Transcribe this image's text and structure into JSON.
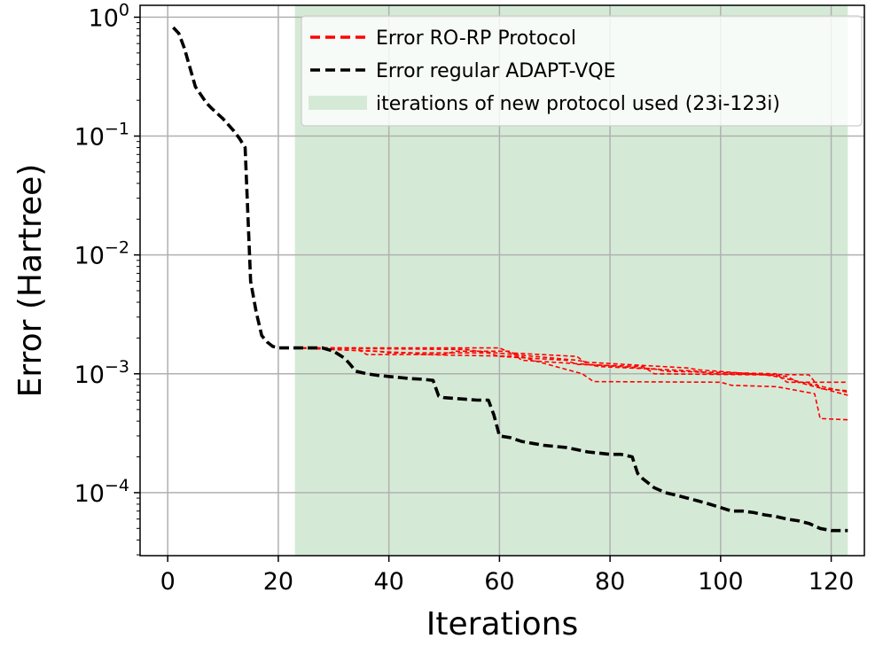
{
  "chart_data": {
    "type": "line",
    "xlabel": "Iterations",
    "ylabel": "Error (Hartree)",
    "xlim": [
      -5,
      126
    ],
    "ylim_log10": [
      -4.53,
      0.1
    ],
    "y_scale": "log",
    "grid": true,
    "x_ticks": [
      0,
      20,
      40,
      60,
      80,
      100,
      120
    ],
    "y_ticks": [
      {
        "exp": 0,
        "base": "10",
        "sup": "0"
      },
      {
        "exp": -1,
        "base": "10",
        "sup": "−1"
      },
      {
        "exp": -2,
        "base": "10",
        "sup": "−2"
      },
      {
        "exp": -3,
        "base": "10",
        "sup": "−3"
      },
      {
        "exp": -4,
        "base": "10",
        "sup": "−4"
      }
    ],
    "shaded_region": {
      "x": [
        23,
        123
      ],
      "color": "#d5ead6",
      "label": "iterations of new protocol used (23i-123i)"
    },
    "legend_position": "upper-right",
    "colors": {
      "ro_rp": "#ff0000",
      "regular": "#000000",
      "shade": "#d5ead6",
      "grid": "#b0b0b0"
    },
    "series": [
      {
        "name": "Error regular ADAPT-VQE",
        "style": "black-dashed",
        "x": [
          1,
          2,
          3,
          4,
          5,
          7,
          8,
          10,
          12,
          13,
          14,
          15,
          16,
          17,
          18,
          19,
          20,
          22,
          24,
          26,
          28,
          30,
          32,
          33,
          34,
          36,
          38,
          40,
          42,
          44,
          46,
          48,
          49,
          50,
          52,
          54,
          56,
          58,
          59,
          60,
          62,
          64,
          66,
          68,
          70,
          72,
          74,
          76,
          78,
          80,
          82,
          84,
          85,
          86,
          88,
          90,
          92,
          94,
          96,
          98,
          100,
          102,
          104,
          106,
          108,
          110,
          112,
          114,
          116,
          118,
          120,
          123
        ],
        "y": [
          0.82,
          0.73,
          0.55,
          0.38,
          0.26,
          0.19,
          0.17,
          0.14,
          0.11,
          0.095,
          0.08,
          0.006,
          0.0033,
          0.0021,
          0.00185,
          0.0017,
          0.00165,
          0.00165,
          0.00165,
          0.00165,
          0.00165,
          0.00155,
          0.00135,
          0.0012,
          0.00105,
          0.001,
          0.00097,
          0.00095,
          0.00093,
          0.00091,
          0.0009,
          0.00088,
          0.00065,
          0.00063,
          0.00062,
          0.00061,
          0.0006,
          0.0006,
          0.00045,
          0.0003,
          0.00029,
          0.00027,
          0.00026,
          0.00025,
          0.000245,
          0.00024,
          0.00023,
          0.00022,
          0.000215,
          0.00021,
          0.00021,
          0.0002,
          0.000145,
          0.00013,
          0.00011,
          0.0001,
          9.5e-05,
          9e-05,
          8.5e-05,
          8e-05,
          7.5e-05,
          7e-05,
          7e-05,
          6.8e-05,
          6.5e-05,
          6.3e-05,
          6e-05,
          5.8e-05,
          5.5e-05,
          5e-05,
          4.8e-05,
          4.8e-05
        ]
      },
      {
        "name": "Error RO-RP Protocol",
        "style": "red-dashed",
        "x": [
          23,
          30,
          35,
          37,
          60,
          62,
          74,
          76,
          88,
          90,
          110,
          112,
          123
        ],
        "y": [
          0.00165,
          0.00165,
          0.00165,
          0.00165,
          0.00165,
          0.0015,
          0.0014,
          0.0012,
          0.0011,
          0.00105,
          0.001,
          0.00085,
          0.00085
        ]
      },
      {
        "name": "",
        "style": "red-dashed",
        "x": [
          23,
          34,
          36,
          50,
          52,
          62,
          64,
          76,
          78,
          96,
          98,
          116,
          118,
          123
        ],
        "y": [
          0.00165,
          0.00165,
          0.00145,
          0.00145,
          0.00155,
          0.00155,
          0.0013,
          0.0012,
          0.00115,
          0.00105,
          0.001,
          0.00098,
          0.00075,
          0.00072
        ]
      },
      {
        "name": "",
        "style": "red-dashed",
        "x": [
          23,
          38,
          40,
          58,
          60,
          72,
          74,
          86,
          88,
          108,
          110,
          123
        ],
        "y": [
          0.00165,
          0.00155,
          0.0015,
          0.0015,
          0.0014,
          0.0013,
          0.0012,
          0.00115,
          0.001,
          0.00098,
          0.00095,
          0.0007
        ]
      },
      {
        "name": "",
        "style": "red-dashed",
        "x": [
          23,
          44,
          46,
          64,
          66,
          75,
          77,
          100,
          102,
          110,
          112,
          117,
          118,
          123
        ],
        "y": [
          0.00165,
          0.0015,
          0.00145,
          0.0014,
          0.0013,
          0.001,
          0.00086,
          0.00085,
          0.0008,
          0.00078,
          0.00075,
          0.00068,
          0.00042,
          0.00041
        ]
      },
      {
        "name": "",
        "style": "red-dashed",
        "x": [
          23,
          54,
          56,
          74,
          76,
          94,
          96,
          112,
          114,
          123
        ],
        "y": [
          0.00165,
          0.0016,
          0.00155,
          0.0013,
          0.00125,
          0.00112,
          0.00108,
          0.00095,
          0.00085,
          0.00066
        ]
      }
    ],
    "legend": [
      {
        "label": "Error RO-RP Protocol",
        "kind": "line",
        "color": "#ff0000"
      },
      {
        "label": "Error regular ADAPT-VQE",
        "kind": "line",
        "color": "#000000"
      },
      {
        "label": "iterations of new protocol used (23i-123i)",
        "kind": "patch",
        "color": "#d5ead6"
      }
    ]
  }
}
